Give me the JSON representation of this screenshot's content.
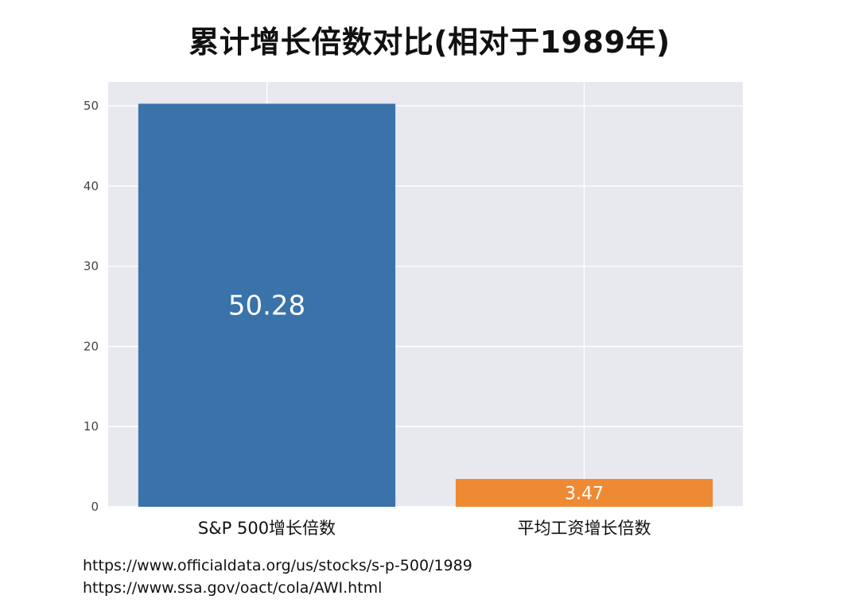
{
  "chart_data": {
    "type": "bar",
    "title": "累计增长倍数对比(相对于1989年)",
    "categories": [
      "S&P 500增长倍数",
      "平均工资增长倍数"
    ],
    "values": [
      50.28,
      3.47
    ],
    "data_labels": [
      "50.28",
      "3.47"
    ],
    "colors": [
      "#3a72aa",
      "#ef8a34"
    ],
    "ylim": [
      0,
      53
    ],
    "yticks": [
      0,
      10,
      20,
      30,
      40,
      50
    ],
    "grid": true,
    "xlabel": "",
    "ylabel": ""
  },
  "sources": [
    "https://www.officialdata.org/us/stocks/s-p-500/1989",
    "https://www.ssa.gov/oact/cola/AWI.html"
  ]
}
